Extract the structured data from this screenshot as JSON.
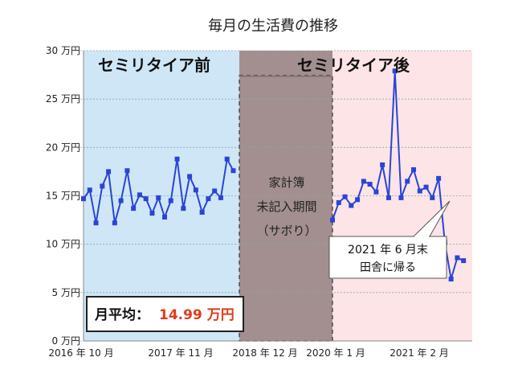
{
  "chart_data": {
    "type": "line",
    "title": "毎月の生活費の推移",
    "y_unit": "万円",
    "ylim": [
      0,
      30
    ],
    "yticks": [
      0,
      5,
      10,
      15,
      20,
      25,
      30
    ],
    "y_tick_labels": [
      "0 万円",
      "5 万円",
      "10 万円",
      "15 万円",
      "20 万円",
      "25 万円",
      "30 万円"
    ],
    "x_tick_labels": [
      "2016 年 10 月",
      "2017 年 11 月",
      "2018 年 12 月",
      "2020 年 1 月",
      "2021 年 2 月"
    ],
    "grid": true,
    "series": [
      {
        "color": "#2a45d6",
        "segments": [
          {
            "period": "before",
            "values": [
              14.7,
              15.6,
              12.2,
              16.0,
              17.5,
              12.2,
              14.5,
              17.6,
              13.7,
              15.1,
              14.7,
              13.2,
              14.8,
              12.8,
              14.5,
              18.8,
              13.7,
              17.0,
              15.6,
              13.3,
              14.7,
              15.5,
              14.8,
              18.8,
              17.6
            ]
          },
          {
            "period": "after",
            "values": [
              12.5,
              14.3,
              14.9,
              14.0,
              14.6,
              16.5,
              16.2,
              15.4,
              18.2,
              14.8,
              27.9,
              14.8,
              16.5,
              17.7,
              15.5,
              15.9,
              14.8,
              16.8,
              10.2,
              6.4,
              8.6,
              8.3
            ]
          }
        ]
      }
    ],
    "regions": [
      {
        "label": "セミリタイア前",
        "color": "#cfe6f6"
      },
      {
        "label": "未記入期間",
        "color": "#a38f8f"
      },
      {
        "label": "セミリタイア後",
        "color": "#fde4e6"
      }
    ],
    "gap_label_lines": [
      "家計簿",
      "未記入期間",
      "（サボり）"
    ],
    "average": {
      "label": "月平均：",
      "value": "14.99 万円"
    },
    "annotation": {
      "lines": [
        "2021 年 6 月末",
        "田舎に帰る"
      ]
    }
  }
}
